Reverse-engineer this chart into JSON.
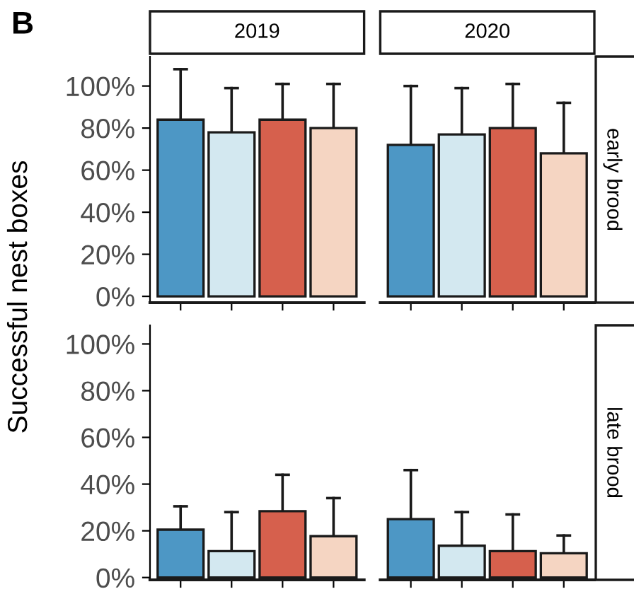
{
  "chart_data": [
    {
      "type": "bar",
      "ylabel": "Successful nest boxes",
      "annotations": [
        "B",
        "early brood"
      ],
      "categories": [
        "2019",
        "2020"
      ],
      "series": [
        {
          "color": "#4d97c5",
          "values": [
            84,
            72
          ],
          "errors": [
            [
              84,
              108
            ],
            [
              72,
              100
            ]
          ]
        },
        {
          "color": "#d3e8f0",
          "values": [
            78,
            77
          ],
          "errors": [
            [
              78,
              99
            ],
            [
              77,
              99
            ]
          ]
        },
        {
          "color": "#d6604d",
          "values": [
            84,
            80
          ],
          "errors": [
            [
              84,
              101
            ],
            [
              80,
              101
            ]
          ]
        },
        {
          "color": "#f5d5c2",
          "values": [
            80,
            68
          ],
          "errors": [
            [
              80,
              101
            ],
            [
              68,
              92
            ]
          ]
        }
      ],
      "ylim": [
        -3,
        114
      ],
      "yticks": [
        {
          "value": 0,
          "label": "0%"
        },
        {
          "value": 20,
          "label": "20%"
        },
        {
          "value": 40,
          "label": "40%"
        },
        {
          "value": 60,
          "label": "60%"
        },
        {
          "value": 80,
          "label": "80%"
        },
        {
          "value": 100,
          "label": "100%"
        }
      ],
      "grid": false
    },
    {
      "type": "bar",
      "annotations": [
        "late brood"
      ],
      "categories": [
        "2019",
        "2020"
      ],
      "series": [
        {
          "color": "#4d97c5",
          "values": [
            20.5,
            25
          ],
          "errors": [
            [
              20.5,
              30.5
            ],
            [
              25,
              46
            ]
          ]
        },
        {
          "color": "#d3e8f0",
          "values": [
            11.3,
            13.6
          ],
          "errors": [
            [
              11.3,
              28
            ],
            [
              13.6,
              28
            ]
          ]
        },
        {
          "color": "#d6604d",
          "values": [
            28.4,
            11.3
          ],
          "errors": [
            [
              28.4,
              44
            ],
            [
              11.3,
              27
            ]
          ]
        },
        {
          "color": "#f5d5c2",
          "values": [
            17.7,
            10.4
          ],
          "errors": [
            [
              17.7,
              34
            ],
            [
              10.4,
              18
            ]
          ]
        }
      ],
      "ylim": [
        -1,
        108
      ],
      "yticks": [
        {
          "value": 0,
          "label": "0%"
        },
        {
          "value": 20,
          "label": "20%"
        },
        {
          "value": 40,
          "label": "40%"
        },
        {
          "value": 60,
          "label": "60%"
        },
        {
          "value": 80,
          "label": "80%"
        },
        {
          "value": 100,
          "label": "100%"
        }
      ],
      "tick_labels": "y",
      "grid": false
    }
  ]
}
